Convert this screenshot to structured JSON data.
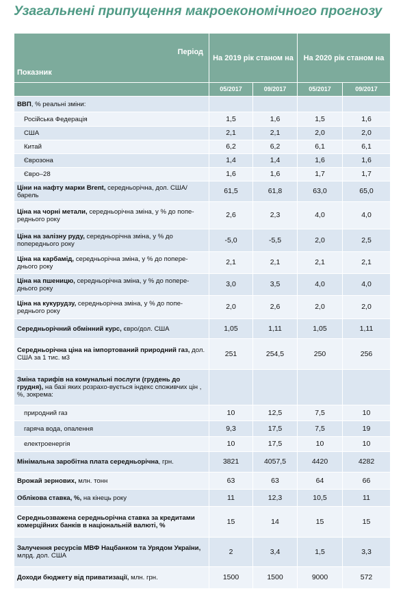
{
  "title": "Узагальнені припущення макроекономічного прогнозу",
  "header": {
    "period": "Період",
    "indicator": "Показник",
    "groups": [
      "На 2019 рік станом на",
      "На 2020 рік станом на"
    ],
    "dates": [
      "05/2017",
      "09/2017",
      "05/2017",
      "09/2017"
    ]
  },
  "table": {
    "rows": [
      {
        "bold": "ВВП",
        "label": ", % реальні зміни:"
      },
      {
        "label": "Російська Федерація",
        "sub": true,
        "values": [
          "1,5",
          "1,6",
          "1,5",
          "1,6"
        ]
      },
      {
        "label": "США",
        "sub": true,
        "values": [
          "2,1",
          "2,1",
          "2,0",
          "2,0"
        ]
      },
      {
        "label": "Китай",
        "sub": true,
        "values": [
          "6,2",
          "6,2",
          "6,1",
          "6,1"
        ]
      },
      {
        "label": "Єврозона",
        "sub": true,
        "values": [
          "1,4",
          "1,4",
          "1,6",
          "1,6"
        ]
      },
      {
        "label": "Євро–28",
        "sub": true,
        "values": [
          "1,6",
          "1,6",
          "1,7",
          "1,7"
        ]
      },
      {
        "bold": "Ціни на нафту марки Brent,",
        "label": " середньорічна, дол. США/барель",
        "values": [
          "61,5",
          "61,8",
          "63,0",
          "65,0"
        ]
      },
      {
        "bold": "Ціна на чорні метали,",
        "label": " середньорічна зміна, у % до попе-реднього року",
        "values": [
          "2,6",
          "2,3",
          "4,0",
          "4,0"
        ]
      },
      {
        "bold": "Ціна на залізну руду,",
        "label": " середньорічна зміна, у % до попереднього року",
        "values": [
          "-5,0",
          "-5,5",
          "2,0",
          "2,5"
        ]
      },
      {
        "bold": "Ціна на карбамід,",
        "label": " середньорічна зміна, у % до попере-днього року",
        "values": [
          "2,1",
          "2,1",
          "2,1",
          "2,1"
        ]
      },
      {
        "bold": "Ціна на пшеницю,",
        "label": " середньорічна зміна, у % до попере-днього року",
        "values": [
          "3,0",
          "3,5",
          "4,0",
          "4,0"
        ]
      },
      {
        "bold": "Ціна на кукурудзу,",
        "label": " середньорічна зміна, у % до попе-реднього року",
        "values": [
          "2,0",
          "2,6",
          "2,0",
          "2,0"
        ]
      },
      {
        "bold": "Середньорічний обмінний курс,",
        "label": " євро/дол. США",
        "values": [
          "1,05",
          "1,11",
          "1,05",
          "1,11"
        ]
      },
      {
        "bold": "Середньорічна ціна на імпортований природний газ,",
        "label": " дол. США за 1 тис. м3",
        "values": [
          "251",
          "254,5",
          "250",
          "256"
        ]
      },
      {
        "bold": "Зміна тарифів на комунальні послуги (грудень до грудня),",
        "label": " на базі яких розрахо-вується індекс споживчих цін , %, зокрема:"
      },
      {
        "label": "природний газ",
        "sub": true,
        "values": [
          "10",
          "12,5",
          "7,5",
          "10"
        ]
      },
      {
        "label": "гаряча вода, опалення",
        "sub": true,
        "values": [
          "9,3",
          "17,5",
          "7,5",
          "19"
        ]
      },
      {
        "label": "електроенергія",
        "sub": true,
        "values": [
          "10",
          "17,5",
          "10",
          "10"
        ]
      },
      {
        "bold": "Мінімальна заробітна плата середньорічна",
        "label": ", грн.",
        "values": [
          "3821",
          "4057,5",
          "4420",
          "4282"
        ]
      },
      {
        "bold": "Врожай зернових,",
        "label": " млн. тонн",
        "values": [
          "63",
          "63",
          "64",
          "66"
        ]
      },
      {
        "bold": "Облікова ставка, %,",
        "label": " на кінець року",
        "values": [
          "11",
          "12,3",
          "10,5",
          "11"
        ]
      },
      {
        "bold": "Середньозважена середньорічна ставка за кредитами комерційних банків в національній валюті, %",
        "values": [
          "15",
          "14",
          "15",
          "15"
        ]
      },
      {
        "bold": "Залучення ресурсів МВФ Нацбанком та Урядом України,",
        "label": " млрд. дол. США",
        "values": [
          "2",
          "3,4",
          "1,5",
          "3,3"
        ]
      },
      {
        "bold": "Доходи бюджету від приватизації,",
        "label": " млн. грн.",
        "values": [
          "1500",
          "1500",
          "9000",
          "572"
        ]
      }
    ]
  }
}
